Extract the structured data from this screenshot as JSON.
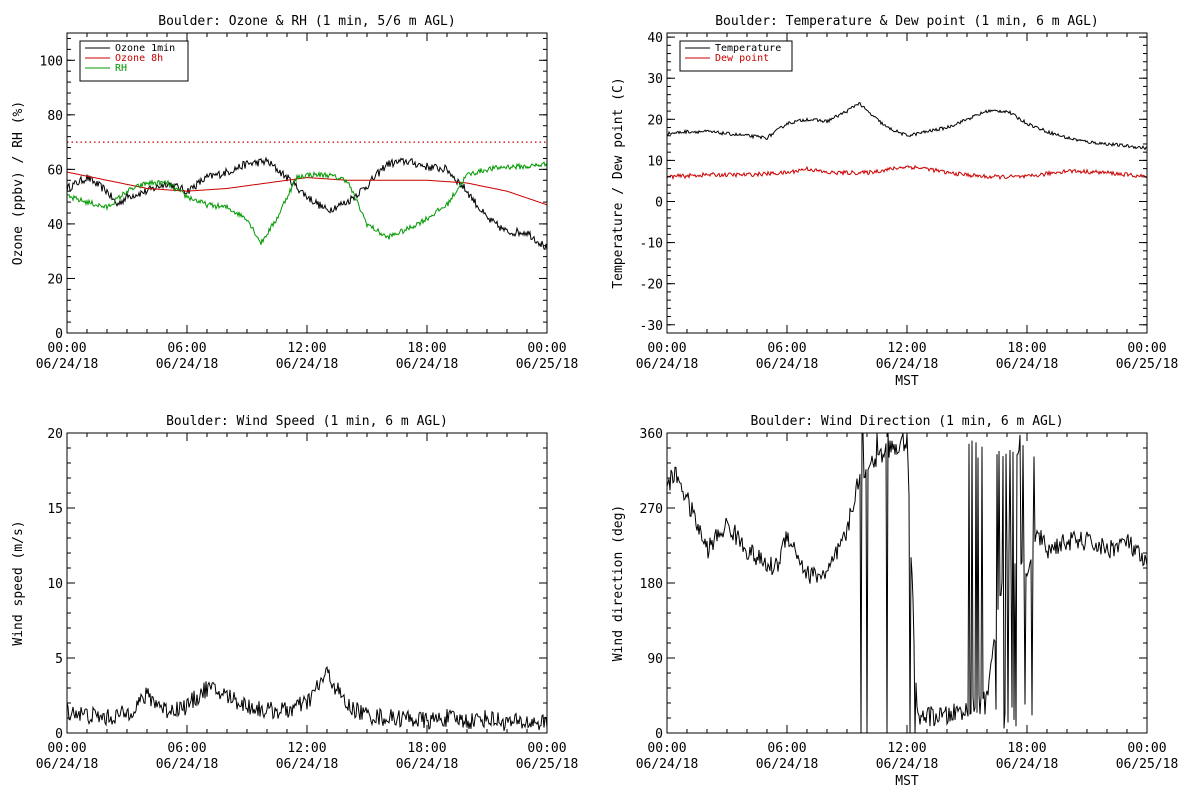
{
  "colors": {
    "black": "#000000",
    "red": "#cc0000",
    "green": "#009900"
  },
  "chart_data": [
    {
      "type": "line",
      "title": "Boulder: Ozone & RH (1 min, 5/6 m AGL)",
      "xlabel": "",
      "ylabel": "Ozone (ppbv) / RH (%)",
      "xlim": [
        0,
        24
      ],
      "ylim": [
        0,
        110
      ],
      "yticks": [
        0,
        20,
        40,
        60,
        80,
        100
      ],
      "xticks": [
        {
          "v": 0,
          "l1": "00:00",
          "l2": "06/24/18"
        },
        {
          "v": 6,
          "l1": "06:00",
          "l2": "06/24/18"
        },
        {
          "v": 12,
          "l1": "12:00",
          "l2": "06/24/18"
        },
        {
          "v": 18,
          "l1": "18:00",
          "l2": "06/24/18"
        },
        {
          "v": 24,
          "l1": "00:00",
          "l2": "06/25/18"
        }
      ],
      "reference_line": {
        "y": 70,
        "color": "#cc0000",
        "style": "dotted"
      },
      "legend": {
        "position": "top-left"
      },
      "series": [
        {
          "name": "Ozone 1min",
          "color": "#000000",
          "noise": 1.5,
          "x": [
            0,
            1,
            2,
            2.5,
            3,
            4,
            5,
            6,
            7,
            8,
            9,
            10,
            10.5,
            11,
            12,
            13,
            14,
            15,
            16,
            17,
            18,
            19,
            20,
            21,
            22,
            23,
            24
          ],
          "y": [
            53,
            57,
            52,
            47,
            50,
            52,
            55,
            52,
            57,
            59,
            62,
            63,
            60,
            57,
            50,
            45,
            48,
            54,
            62,
            63,
            61,
            60,
            52,
            42,
            37,
            37,
            31
          ]
        },
        {
          "name": "Ozone 8h",
          "color": "#cc0000",
          "noise": 0,
          "x": [
            0,
            2,
            4,
            6,
            8,
            10,
            12,
            14,
            16,
            18,
            20,
            22,
            24
          ],
          "y": [
            59,
            56,
            53,
            52,
            53,
            55,
            57,
            56,
            56,
            56,
            55,
            52,
            47
          ]
        },
        {
          "name": "RH",
          "color": "#009900",
          "noise": 1,
          "x": [
            0,
            1,
            2,
            3,
            4,
            5,
            6,
            7,
            8,
            9,
            9.7,
            10.5,
            11,
            11.5,
            12,
            13,
            14,
            15,
            16,
            17,
            18,
            19,
            20,
            21,
            22,
            23,
            24
          ],
          "y": [
            50,
            48,
            46,
            52,
            55,
            55,
            50,
            47,
            46,
            42,
            33,
            42,
            50,
            57,
            58,
            58,
            56,
            40,
            35,
            38,
            42,
            47,
            58,
            60,
            61,
            61,
            62
          ]
        }
      ]
    },
    {
      "type": "line",
      "title": "Boulder: Temperature & Dew point (1 min, 6 m AGL)",
      "xlabel": "MST",
      "ylabel": "Temperature / Dew point (C)",
      "xlim": [
        0,
        24
      ],
      "ylim": [
        -32,
        41
      ],
      "yticks": [
        -30,
        -20,
        -10,
        0,
        10,
        20,
        30,
        40
      ],
      "xticks": [
        {
          "v": 0,
          "l1": "00:00",
          "l2": "06/24/18"
        },
        {
          "v": 6,
          "l1": "06:00",
          "l2": "06/24/18"
        },
        {
          "v": 12,
          "l1": "12:00",
          "l2": "06/24/18"
        },
        {
          "v": 18,
          "l1": "18:00",
          "l2": "06/24/18"
        },
        {
          "v": 24,
          "l1": "00:00",
          "l2": "06/25/18"
        }
      ],
      "legend": {
        "position": "top-left"
      },
      "series": [
        {
          "name": "Temperature",
          "color": "#000000",
          "noise": 0.4,
          "x": [
            0,
            1,
            2,
            3,
            4,
            5,
            6,
            7,
            8,
            9,
            9.6,
            10,
            11,
            12,
            13,
            14,
            15,
            16,
            17,
            18,
            19,
            20,
            21,
            22,
            23,
            24
          ],
          "y": [
            16.5,
            17,
            17,
            16.5,
            16,
            15.5,
            19,
            20,
            19.5,
            22,
            24,
            22,
            18,
            16,
            17,
            18,
            20,
            22,
            22,
            19,
            17,
            15.5,
            14.5,
            14,
            13.5,
            13
          ]
        },
        {
          "name": "Dew point",
          "color": "#cc0000",
          "noise": 0.5,
          "x": [
            0,
            2,
            4,
            6,
            7,
            8,
            10,
            12,
            13,
            14,
            16,
            18,
            20,
            22,
            24
          ],
          "y": [
            6,
            6.5,
            6.5,
            7,
            8,
            7,
            7,
            8.5,
            8,
            7,
            6,
            6,
            7.5,
            7,
            6
          ]
        }
      ]
    },
    {
      "type": "line",
      "title": "Boulder: Wind Speed (1 min, 6 m AGL)",
      "xlabel": "",
      "ylabel": "Wind speed (m/s)",
      "xlim": [
        0,
        24
      ],
      "ylim": [
        0,
        20
      ],
      "yticks": [
        0,
        5,
        10,
        15,
        20
      ],
      "xticks": [
        {
          "v": 0,
          "l1": "00:00",
          "l2": "06/24/18"
        },
        {
          "v": 6,
          "l1": "06:00",
          "l2": "06/24/18"
        },
        {
          "v": 12,
          "l1": "12:00",
          "l2": "06/24/18"
        },
        {
          "v": 18,
          "l1": "18:00",
          "l2": "06/24/18"
        },
        {
          "v": 24,
          "l1": "00:00",
          "l2": "06/25/18"
        }
      ],
      "series": [
        {
          "name": "",
          "color": "#000000",
          "noise": 0.6,
          "x": [
            0,
            1,
            2,
            3,
            4,
            5,
            6,
            7,
            8,
            9,
            10,
            11,
            12,
            13,
            14,
            15,
            16,
            17,
            18,
            19,
            20,
            21,
            22,
            23,
            24
          ],
          "y": [
            1.5,
            1.2,
            1,
            1.3,
            2.5,
            1.5,
            1.8,
            3,
            2.5,
            1.8,
            1.5,
            1.5,
            2,
            4,
            1.8,
            1.2,
            1,
            1,
            0.8,
            1,
            0.8,
            1,
            0.7,
            0.7,
            0.7
          ]
        }
      ]
    },
    {
      "type": "line",
      "title": "Boulder: Wind Direction (1 min, 6 m AGL)",
      "xlabel": "MST",
      "ylabel": "Wind direction (deg)",
      "xlim": [
        0,
        24
      ],
      "ylim": [
        0,
        360
      ],
      "yticks": [
        0,
        90,
        180,
        270,
        360
      ],
      "xticks": [
        {
          "v": 0,
          "l1": "00:00",
          "l2": "06/24/18"
        },
        {
          "v": 6,
          "l1": "06:00",
          "l2": "06/24/18"
        },
        {
          "v": 12,
          "l1": "12:00",
          "l2": "06/24/18"
        },
        {
          "v": 18,
          "l1": "18:00",
          "l2": "06/24/18"
        },
        {
          "v": 24,
          "l1": "00:00",
          "l2": "06/25/18"
        }
      ],
      "series": [
        {
          "name": "",
          "color": "#000000",
          "noise": 12,
          "x": [
            0,
            0.5,
            1,
            2,
            3,
            4,
            5,
            5.5,
            6,
            7,
            8,
            9,
            9.5,
            10,
            11,
            12,
            12.5,
            13,
            14,
            15,
            16,
            17,
            18,
            18.5,
            19,
            20,
            21,
            22,
            23,
            24
          ],
          "y": [
            300,
            310,
            280,
            220,
            250,
            220,
            200,
            200,
            240,
            190,
            190,
            240,
            300,
            320,
            340,
            350,
            20,
            20,
            20,
            30,
            40,
            220,
            200,
            240,
            220,
            230,
            230,
            220,
            230,
            200
          ]
        }
      ]
    }
  ]
}
